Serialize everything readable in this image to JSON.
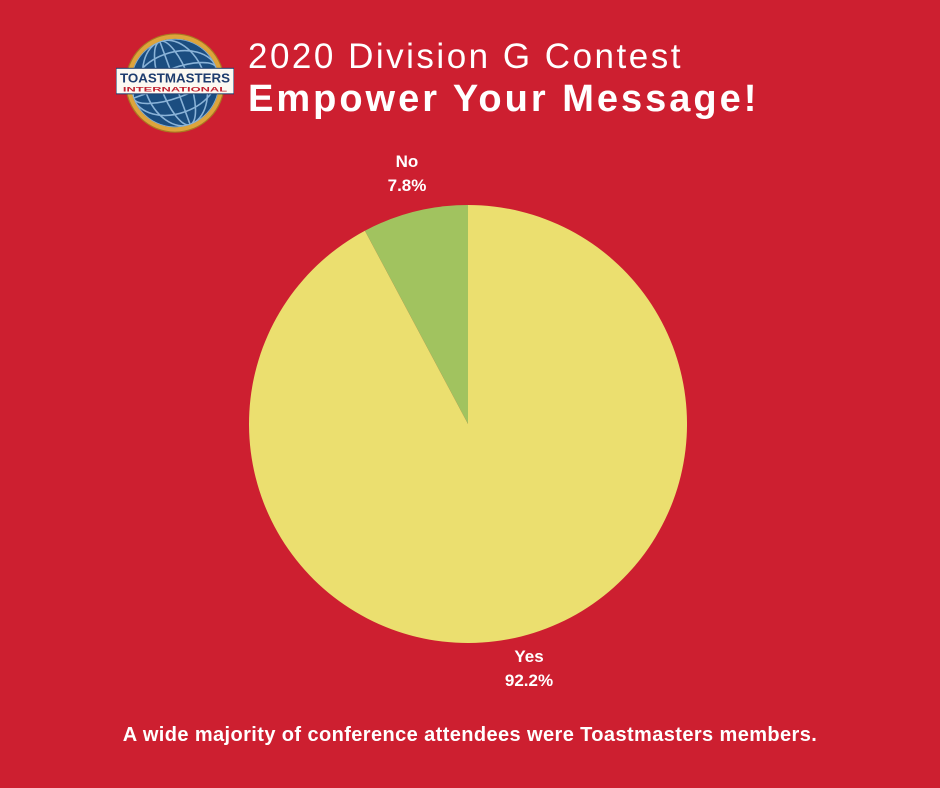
{
  "page": {
    "background_color": "#cd1f30",
    "text_color": "#ffffff"
  },
  "logo": {
    "name": "Toastmasters International globe logo",
    "banner_line1": "TOASTMASTERS",
    "banner_line2": "INTERNATIONAL",
    "colors": {
      "ring_gold": "#dda43c",
      "globe_blue": "#1b4d80",
      "grid_blue": "#8ab3d8",
      "banner_white": "#fcf9f2",
      "banner_text_navy": "#1e3c6e",
      "banner_text_red": "#c02130"
    }
  },
  "header": {
    "title_line1": "2020 Division G Contest",
    "title_line2": "Empower Your Message!"
  },
  "chart_data": {
    "type": "pie",
    "title": "2020 Division G Contest — Empower Your Message!",
    "labels": [
      "Yes",
      "No"
    ],
    "values": [
      92.2,
      7.8
    ],
    "percent_labels": [
      "92.2%",
      "7.8%"
    ],
    "slice_colors": [
      "#ebdf6f",
      "#a1c35f"
    ],
    "start_angle_deg": 0,
    "direction": "clockwise",
    "legend_position": "none",
    "annotation": "A wide majority of conference attendees were Toastmasters members."
  }
}
